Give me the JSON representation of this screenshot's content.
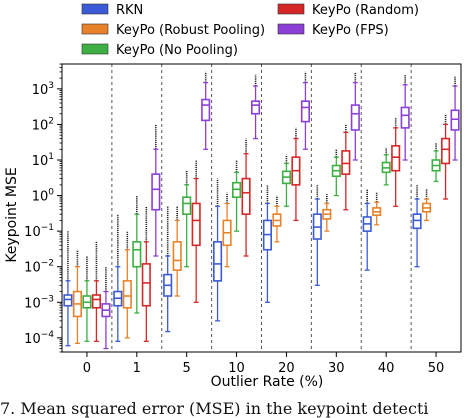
{
  "caption": "7. Mean squared error (MSE) in the keypoint detecti",
  "chart_data": {
    "type": "box",
    "ylabel": "Keypoint MSE",
    "xlabel": "Outlier Rate (%)",
    "yscale": "log",
    "ylim": [
      4e-05,
      5000
    ],
    "yticks": [
      {
        "value": 0.0001,
        "base": "10",
        "exp": "−4"
      },
      {
        "value": 0.001,
        "base": "10",
        "exp": "−3"
      },
      {
        "value": 0.01,
        "base": "10",
        "exp": "−2"
      },
      {
        "value": 0.1,
        "base": "10",
        "exp": "−1"
      },
      {
        "value": 1,
        "base": "10",
        "exp": "0"
      },
      {
        "value": 10,
        "base": "10",
        "exp": "1"
      },
      {
        "value": 100,
        "base": "10",
        "exp": "2"
      },
      {
        "value": 1000,
        "base": "10",
        "exp": "3"
      }
    ],
    "categories": [
      "0",
      "1",
      "5",
      "10",
      "20",
      "30",
      "40",
      "50"
    ],
    "grid": "x-dashed",
    "legend_position": "top",
    "series": [
      {
        "name": "RKN",
        "color": "#3b5bd6",
        "q1": [
          0.0008,
          0.0008,
          0.0015,
          0.004,
          0.03,
          0.06,
          0.1,
          0.12
        ],
        "median": [
          0.0012,
          0.0013,
          0.003,
          0.012,
          0.08,
          0.13,
          0.16,
          0.2
        ],
        "q3": [
          0.0016,
          0.002,
          0.006,
          0.05,
          0.2,
          0.3,
          0.25,
          0.3
        ],
        "whislo": [
          6e-05,
          8e-05,
          0.00015,
          0.0003,
          0.001,
          0.003,
          0.008,
          0.01
        ],
        "whishi": [
          0.004,
          0.01,
          0.02,
          0.5,
          0.6,
          0.8,
          0.6,
          0.8
        ],
        "fliers_hi": [
          0.1,
          0.3,
          0.5,
          3,
          2,
          2,
          1.5,
          2
        ]
      },
      {
        "name": "KeyPo (Robust Pooling)",
        "color": "#e8822a",
        "q1": [
          0.0004,
          0.0007,
          0.008,
          0.04,
          0.14,
          0.22,
          0.28,
          0.35
        ],
        "median": [
          0.0009,
          0.0015,
          0.015,
          0.09,
          0.2,
          0.3,
          0.35,
          0.45
        ],
        "q3": [
          0.002,
          0.004,
          0.05,
          0.2,
          0.3,
          0.4,
          0.45,
          0.6
        ],
        "whislo": [
          7e-05,
          0.0001,
          0.0015,
          0.01,
          0.05,
          0.1,
          0.15,
          0.2
        ],
        "whishi": [
          0.01,
          0.03,
          0.2,
          0.6,
          0.5,
          0.6,
          0.65,
          0.8
        ],
        "fliers_hi": [
          0.03,
          0.1,
          0.5,
          1.2,
          1,
          1.1,
          1.2,
          1.5
        ]
      },
      {
        "name": "KeyPo (No Pooling)",
        "color": "#3cb043",
        "q1": [
          0.0007,
          0.01,
          0.3,
          0.9,
          2.2,
          3.5,
          4.5,
          5
        ],
        "median": [
          0.001,
          0.03,
          0.6,
          1.5,
          3.3,
          5,
          6,
          7
        ],
        "q3": [
          0.0015,
          0.05,
          0.9,
          2.3,
          4.8,
          7,
          8.5,
          10
        ],
        "whislo": [
          8e-05,
          0.0005,
          0.01,
          0.1,
          0.5,
          1,
          2,
          2.5
        ],
        "whishi": [
          0.004,
          0.3,
          2,
          4.5,
          8,
          12,
          14,
          18
        ],
        "fliers_hi": [
          0.02,
          1,
          5,
          10,
          14,
          20,
          22,
          30
        ]
      },
      {
        "name": "KeyPo (Random)",
        "color": "#d62728",
        "q1": [
          0.0007,
          0.0008,
          0.04,
          0.3,
          2,
          4,
          5,
          8
        ],
        "median": [
          0.0012,
          0.0035,
          0.2,
          1.2,
          5,
          8,
          12,
          20
        ],
        "q3": [
          0.0016,
          0.012,
          0.6,
          3,
          12,
          18,
          25,
          40
        ],
        "whislo": [
          8e-05,
          8e-05,
          0.001,
          0.02,
          0.2,
          0.4,
          0.5,
          0.8
        ],
        "whishi": [
          0.004,
          0.05,
          3,
          15,
          40,
          60,
          80,
          100
        ],
        "fliers_hi": [
          0.05,
          0.5,
          10,
          40,
          80,
          100,
          150,
          200
        ]
      },
      {
        "name": "KeyPo (FPS)",
        "color": "#8b3fd6",
        "q1": [
          0.0004,
          0.4,
          130,
          200,
          120,
          70,
          80,
          70
        ],
        "median": [
          0.0006,
          1.5,
          350,
          350,
          300,
          200,
          180,
          140
        ],
        "q3": [
          0.0009,
          4,
          500,
          450,
          450,
          350,
          300,
          250
        ],
        "whislo": [
          5e-05,
          0.02,
          20,
          40,
          20,
          10,
          10,
          10
        ],
        "whishi": [
          0.002,
          20,
          1500,
          1200,
          1500,
          1500,
          1300,
          1200
        ],
        "fliers_hi": [
          0.01,
          100,
          3000,
          2500,
          3000,
          2800,
          2500,
          2200
        ]
      }
    ],
    "legend": [
      {
        "label": "RKN",
        "series": 0
      },
      {
        "label": "KeyPo (Random)",
        "series": 3
      },
      {
        "label": "KeyPo (Robust Pooling)",
        "series": 1
      },
      {
        "label": "KeyPo (FPS)",
        "series": 4
      },
      {
        "label": "KeyPo (No Pooling)",
        "series": 2
      }
    ]
  }
}
